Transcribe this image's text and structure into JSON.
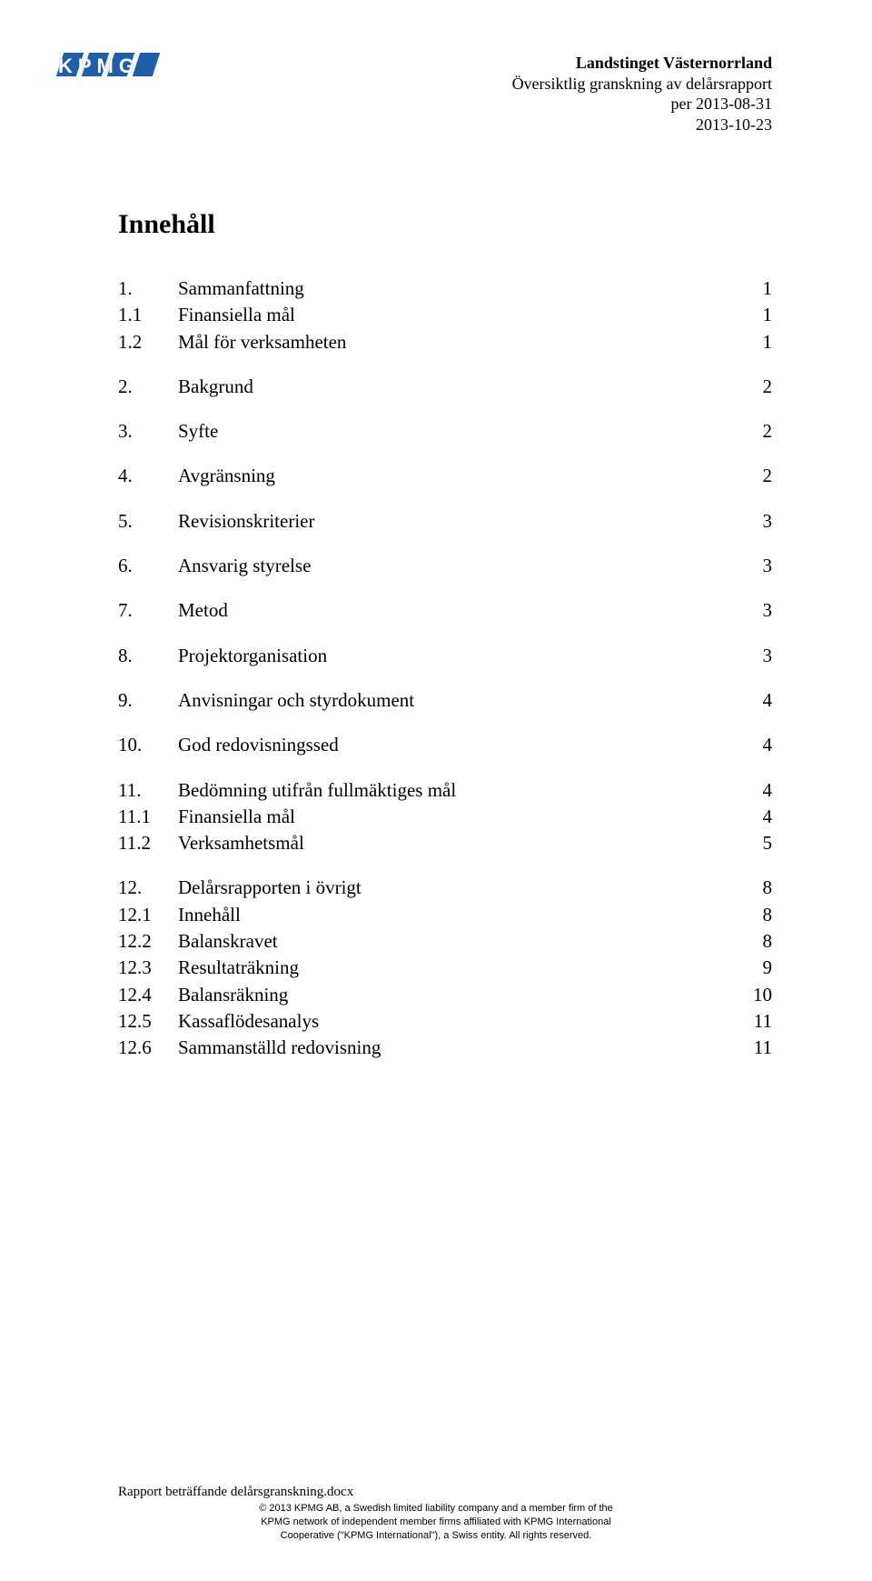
{
  "logo": {
    "text": "KPMG",
    "bar_color": "#1f5fa8"
  },
  "header": {
    "org": "Landstinget Västernorrland",
    "subtitle": "Översiktlig granskning av delårsrapport",
    "period": "per 2013-08-31",
    "date": "2013-10-23"
  },
  "title": "Innehåll",
  "toc": [
    {
      "n": "1.",
      "label": "Sammanfattning",
      "page": "1",
      "level": 0
    },
    {
      "n": "1.1",
      "label": "Finansiella mål",
      "page": "1",
      "level": 1
    },
    {
      "n": "1.2",
      "label": "Mål för verksamheten",
      "page": "1",
      "level": 1
    },
    {
      "n": "2.",
      "label": "Bakgrund",
      "page": "2",
      "level": 0
    },
    {
      "n": "3.",
      "label": "Syfte",
      "page": "2",
      "level": 0
    },
    {
      "n": "4.",
      "label": "Avgränsning",
      "page": "2",
      "level": 0
    },
    {
      "n": "5.",
      "label": "Revisionskriterier",
      "page": "3",
      "level": 0
    },
    {
      "n": "6.",
      "label": "Ansvarig styrelse",
      "page": "3",
      "level": 0
    },
    {
      "n": "7.",
      "label": "Metod",
      "page": "3",
      "level": 0
    },
    {
      "n": "8.",
      "label": "Projektorganisation",
      "page": "3",
      "level": 0
    },
    {
      "n": "9.",
      "label": "Anvisningar och styrdokument",
      "page": "4",
      "level": 0
    },
    {
      "n": "10.",
      "label": "God redovisningssed",
      "page": "4",
      "level": 0
    },
    {
      "n": "11.",
      "label": "Bedömning utifrån fullmäktiges mål",
      "page": "4",
      "level": 0
    },
    {
      "n": "11.1",
      "label": "Finansiella mål",
      "page": "4",
      "level": 1
    },
    {
      "n": "11.2",
      "label": "Verksamhetsmål",
      "page": "5",
      "level": 1
    },
    {
      "n": "12.",
      "label": "Delårsrapporten i övrigt",
      "page": "8",
      "level": 0
    },
    {
      "n": "12.1",
      "label": "Innehåll",
      "page": "8",
      "level": 1
    },
    {
      "n": "12.2",
      "label": "Balanskravet",
      "page": "8",
      "level": 1
    },
    {
      "n": "12.3",
      "label": "Resultaträkning",
      "page": "9",
      "level": 1
    },
    {
      "n": "12.4",
      "label": "Balansräkning",
      "page": "10",
      "level": 1
    },
    {
      "n": "12.5",
      "label": "Kassaflödesanalys",
      "page": "11",
      "level": 1
    },
    {
      "n": "12.6",
      "label": "Sammanställd redovisning",
      "page": "11",
      "level": 1
    }
  ],
  "footer": {
    "docname": "Rapport beträffande delårsgranskning.docx",
    "legal1": "© 2013 KPMG AB, a Swedish limited liability company and a member firm of the",
    "legal2": "KPMG network of independent member firms affiliated with KPMG International",
    "legal3": "Cooperative (\"KPMG International\"), a Swiss entity. All rights reserved."
  }
}
